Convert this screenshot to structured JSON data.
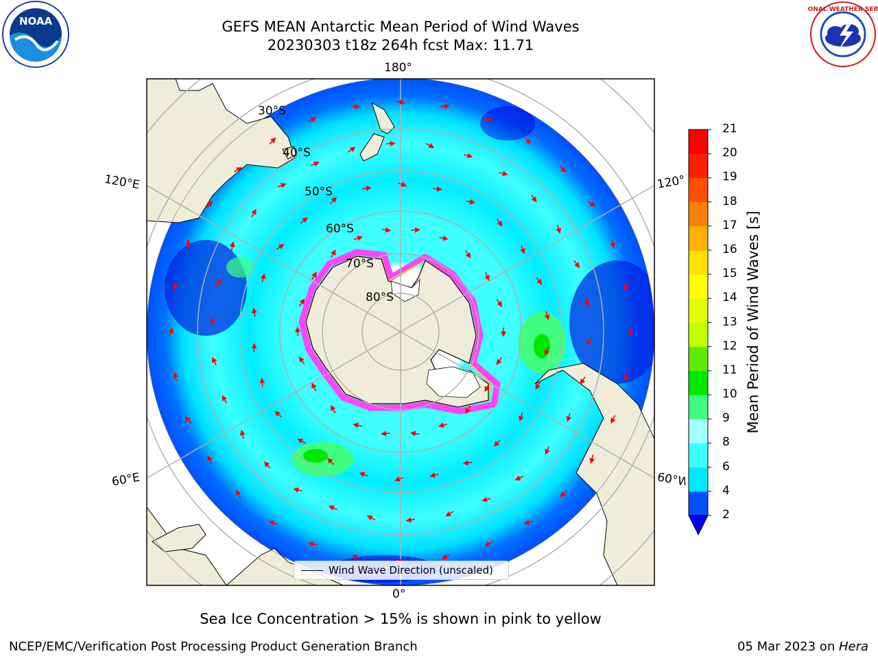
{
  "header": {
    "title_line1": "GEFS MEAN Antarctic Mean Period of Wind Waves",
    "title_line2": "20230303 t18z 264h fcst   Max: 11.71"
  },
  "logos": {
    "left": {
      "icon": "noaa-logo-icon",
      "text": "NOAA"
    },
    "right": {
      "icon": "nws-logo-icon",
      "text": "NATIONAL WEATHER SERVICE"
    }
  },
  "map": {
    "lon_labels": {
      "top": "180°",
      "bottom": "0°",
      "left_upper": "120°E",
      "left_lower": "60°E",
      "right_upper": "120°W",
      "right_lower": "60°W"
    },
    "lat_labels": [
      "30°S",
      "40°S",
      "50°S",
      "60°S",
      "70°S",
      "80°S"
    ],
    "legend_label": "Wind Wave Direction (unscaled)",
    "colors": {
      "land": "#efedd9",
      "ice": "#ff44ff",
      "arrow": "#ff0000",
      "grid": "#b0b0b0"
    }
  },
  "colorbar": {
    "label": "Mean Period of Wind Waves [s]",
    "ticks": [
      "2",
      "4",
      "6",
      "8",
      "9",
      "10",
      "11",
      "12",
      "13",
      "14",
      "15",
      "16",
      "17",
      "18",
      "19",
      "20",
      "21"
    ],
    "colors": [
      "#0050ff",
      "#00e8ff",
      "#40ffff",
      "#a0ffff",
      "#40ff80",
      "#00e800",
      "#60e800",
      "#c0ff00",
      "#e0ff00",
      "#ffff00",
      "#ffe000",
      "#ffb000",
      "#ff8000",
      "#ff5000",
      "#ff2000",
      "#ff0000"
    ],
    "under_color": "#0000ff"
  },
  "footer": {
    "caption": "Sea Ice Concentration > 15% is shown in pink to yellow",
    "left": "NCEP/EMC/Verification Post Processing Product Generation Branch",
    "date": "05 Mar 2023 on ",
    "host": "Hera"
  }
}
